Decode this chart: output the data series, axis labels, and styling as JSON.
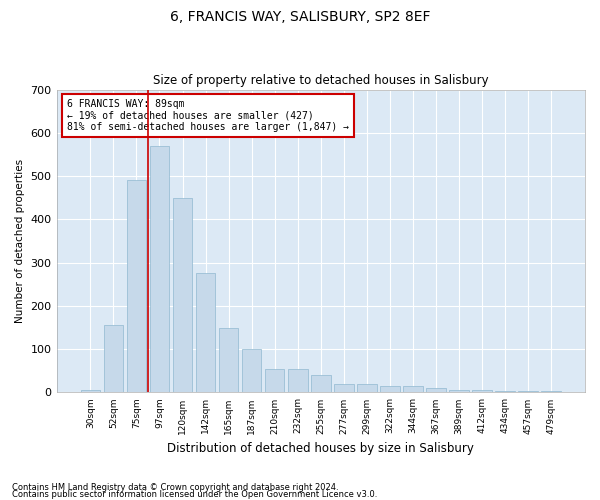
{
  "title": "6, FRANCIS WAY, SALISBURY, SP2 8EF",
  "subtitle": "Size of property relative to detached houses in Salisbury",
  "xlabel": "Distribution of detached houses by size in Salisbury",
  "ylabel": "Number of detached properties",
  "footnote1": "Contains HM Land Registry data © Crown copyright and database right 2024.",
  "footnote2": "Contains public sector information licensed under the Open Government Licence v3.0.",
  "annotation_line1": "6 FRANCIS WAY: 89sqm",
  "annotation_line2": "← 19% of detached houses are smaller (427)",
  "annotation_line3": "81% of semi-detached houses are larger (1,847) →",
  "bar_color": "#c6d9ea",
  "bar_edge_color": "#90b8d0",
  "vline_color": "#cc0000",
  "bg_color": "#dce9f5",
  "grid_color": "#ffffff",
  "categories": [
    "30sqm",
    "52sqm",
    "75sqm",
    "97sqm",
    "120sqm",
    "142sqm",
    "165sqm",
    "187sqm",
    "210sqm",
    "232sqm",
    "255sqm",
    "277sqm",
    "299sqm",
    "322sqm",
    "344sqm",
    "367sqm",
    "389sqm",
    "412sqm",
    "434sqm",
    "457sqm",
    "479sqm"
  ],
  "values": [
    5,
    155,
    490,
    570,
    450,
    275,
    150,
    100,
    55,
    55,
    40,
    20,
    20,
    15,
    15,
    10,
    5,
    5,
    3,
    3,
    3
  ],
  "ylim": [
    0,
    700
  ],
  "yticks": [
    0,
    100,
    200,
    300,
    400,
    500,
    600,
    700
  ],
  "vline_x": 2.5
}
